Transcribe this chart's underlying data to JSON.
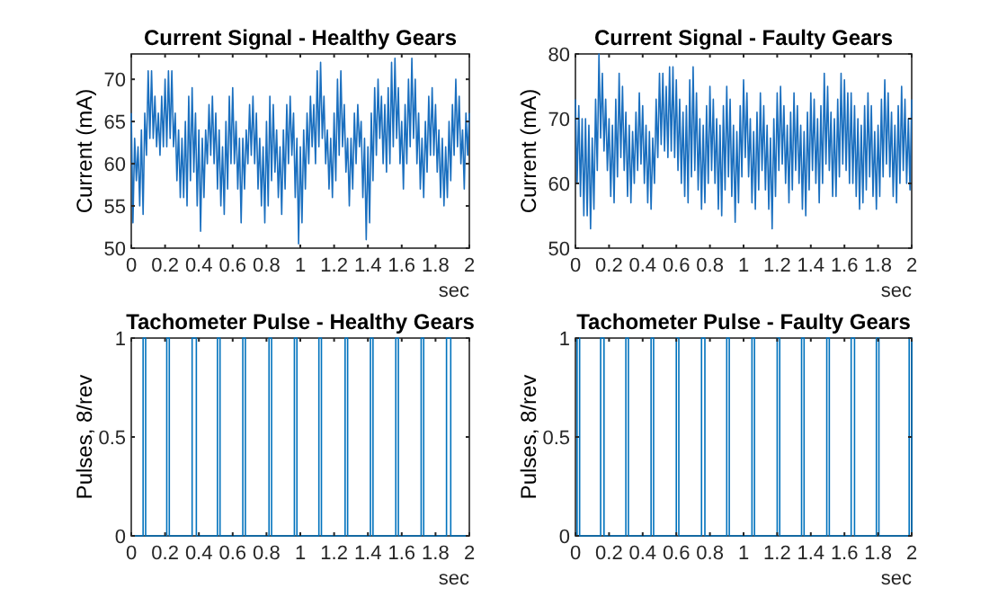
{
  "chart_data": [
    {
      "type": "line",
      "title": "Current Signal - Healthy Gears",
      "xlabel": "sec",
      "ylabel": "Current (mA)",
      "xlim": [
        0,
        2
      ],
      "ylim": [
        50,
        73
      ],
      "xticks": [
        0,
        0.2,
        0.4,
        0.6,
        0.8,
        1,
        1.2,
        1.4,
        1.6,
        1.8,
        2
      ],
      "yticks": [
        50,
        55,
        60,
        65,
        70
      ],
      "grid": false,
      "line_style": "solid",
      "x": [
        0,
        0.01,
        0.02,
        0.03,
        0.04,
        0.05,
        0.06,
        0.07,
        0.08,
        0.09,
        0.1,
        0.11,
        0.12,
        0.13,
        0.14,
        0.15,
        0.16,
        0.17,
        0.18,
        0.19,
        0.2,
        0.21,
        0.22,
        0.23,
        0.24,
        0.25,
        0.26,
        0.27,
        0.28,
        0.29,
        0.3,
        0.31,
        0.32,
        0.33,
        0.34,
        0.35,
        0.36,
        0.37,
        0.38,
        0.39,
        0.4,
        0.41,
        0.42,
        0.43,
        0.44,
        0.45,
        0.46,
        0.47,
        0.48,
        0.49,
        0.5,
        0.51,
        0.52,
        0.53,
        0.54,
        0.55,
        0.56,
        0.57,
        0.58,
        0.59,
        0.6,
        0.61,
        0.62,
        0.63,
        0.64,
        0.65,
        0.66,
        0.67,
        0.68,
        0.69,
        0.7,
        0.71,
        0.72,
        0.73,
        0.74,
        0.75,
        0.76,
        0.77,
        0.78,
        0.79,
        0.8,
        0.81,
        0.82,
        0.83,
        0.84,
        0.85,
        0.86,
        0.87,
        0.88,
        0.89,
        0.9,
        0.91,
        0.92,
        0.93,
        0.94,
        0.95,
        0.96,
        0.97,
        0.98,
        0.99,
        1,
        1.01,
        1.02,
        1.03,
        1.04,
        1.05,
        1.06,
        1.07,
        1.08,
        1.09,
        1.1,
        1.11,
        1.12,
        1.13,
        1.14,
        1.15,
        1.16,
        1.17,
        1.18,
        1.19,
        1.2,
        1.21,
        1.22,
        1.23,
        1.24,
        1.25,
        1.26,
        1.27,
        1.28,
        1.29,
        1.3,
        1.31,
        1.32,
        1.33,
        1.34,
        1.35,
        1.36,
        1.37,
        1.38,
        1.39,
        1.4,
        1.41,
        1.42,
        1.43,
        1.44,
        1.45,
        1.46,
        1.47,
        1.48,
        1.49,
        1.5,
        1.51,
        1.52,
        1.53,
        1.54,
        1.55,
        1.56,
        1.57,
        1.58,
        1.59,
        1.6,
        1.61,
        1.62,
        1.63,
        1.64,
        1.65,
        1.66,
        1.67,
        1.68,
        1.69,
        1.7,
        1.71,
        1.72,
        1.73,
        1.74,
        1.75,
        1.76,
        1.77,
        1.78,
        1.79,
        1.8,
        1.81,
        1.82,
        1.83,
        1.84,
        1.85,
        1.86,
        1.87,
        1.88,
        1.89,
        1.9,
        1.91,
        1.92,
        1.93,
        1.94,
        1.95,
        1.96,
        1.97,
        1.98,
        1.99,
        2
      ],
      "series": [
        {
          "color": "#1a6fbf",
          "values": [
            66,
            53,
            63,
            58,
            62,
            55,
            64,
            54,
            66,
            61,
            71,
            63,
            71,
            63,
            68,
            62,
            66,
            61,
            68,
            62,
            70,
            62,
            71,
            63,
            71,
            62,
            66,
            58,
            64,
            56,
            63,
            56,
            65,
            55,
            68,
            58,
            69,
            59,
            66,
            55,
            64,
            52,
            63,
            56,
            64,
            60,
            67,
            61,
            68,
            60,
            66,
            57,
            64,
            55,
            62,
            54,
            65,
            57,
            68,
            60,
            69,
            60,
            65,
            57,
            63,
            53,
            63,
            57,
            64,
            60,
            67,
            61,
            68,
            60,
            66,
            57,
            63,
            55,
            62,
            53,
            65,
            55,
            68,
            58,
            67,
            59,
            64,
            56,
            62,
            54,
            64,
            57,
            67,
            60,
            68,
            61,
            66,
            56,
            63,
            50.5,
            62,
            53,
            64,
            57,
            66,
            60,
            68,
            62,
            67,
            60,
            71,
            62,
            72,
            63,
            68,
            60,
            64,
            57,
            63,
            56,
            66,
            58,
            70,
            61,
            71,
            62,
            67,
            59,
            63,
            55,
            63,
            57,
            66,
            60,
            67,
            62,
            65,
            56,
            63,
            51,
            62,
            53,
            66,
            58,
            69,
            61,
            70,
            63,
            68,
            60,
            67,
            59,
            69,
            60,
            72,
            62,
            72.5,
            63,
            69,
            60,
            65,
            57,
            67,
            60,
            70,
            62,
            72.5,
            63,
            70,
            60,
            66,
            57,
            63,
            56,
            65,
            59,
            68,
            61,
            69,
            61,
            67,
            59,
            64,
            56,
            63,
            55,
            62,
            56,
            65,
            58,
            67,
            61,
            70,
            62,
            68,
            60,
            64,
            57,
            66,
            61,
            66
          ]
        }
      ]
    },
    {
      "type": "line",
      "title": "Current Signal - Faulty Gears",
      "xlabel": "sec",
      "ylabel": "Current (mA)",
      "xlim": [
        0,
        2
      ],
      "ylim": [
        50,
        80
      ],
      "xticks": [
        0,
        0.2,
        0.4,
        0.6,
        0.8,
        1,
        1.2,
        1.4,
        1.6,
        1.8,
        2
      ],
      "yticks": [
        50,
        60,
        70,
        80
      ],
      "grid": false,
      "line_style": "solid",
      "x": [
        0,
        0.01,
        0.02,
        0.03,
        0.04,
        0.05,
        0.06,
        0.07,
        0.08,
        0.09,
        0.1,
        0.11,
        0.12,
        0.13,
        0.14,
        0.15,
        0.16,
        0.17,
        0.18,
        0.19,
        0.2,
        0.21,
        0.22,
        0.23,
        0.24,
        0.25,
        0.26,
        0.27,
        0.28,
        0.29,
        0.3,
        0.31,
        0.32,
        0.33,
        0.34,
        0.35,
        0.36,
        0.37,
        0.38,
        0.39,
        0.4,
        0.41,
        0.42,
        0.43,
        0.44,
        0.45,
        0.46,
        0.47,
        0.48,
        0.49,
        0.5,
        0.51,
        0.52,
        0.53,
        0.54,
        0.55,
        0.56,
        0.57,
        0.58,
        0.59,
        0.6,
        0.61,
        0.62,
        0.63,
        0.64,
        0.65,
        0.66,
        0.67,
        0.68,
        0.69,
        0.7,
        0.71,
        0.72,
        0.73,
        0.74,
        0.75,
        0.76,
        0.77,
        0.78,
        0.79,
        0.8,
        0.81,
        0.82,
        0.83,
        0.84,
        0.85,
        0.86,
        0.87,
        0.88,
        0.89,
        0.9,
        0.91,
        0.92,
        0.93,
        0.94,
        0.95,
        0.96,
        0.97,
        0.98,
        0.99,
        1,
        1.01,
        1.02,
        1.03,
        1.04,
        1.05,
        1.06,
        1.07,
        1.08,
        1.09,
        1.1,
        1.11,
        1.12,
        1.13,
        1.14,
        1.15,
        1.16,
        1.17,
        1.18,
        1.19,
        1.2,
        1.21,
        1.22,
        1.23,
        1.24,
        1.25,
        1.26,
        1.27,
        1.28,
        1.29,
        1.3,
        1.31,
        1.32,
        1.33,
        1.34,
        1.35,
        1.36,
        1.37,
        1.38,
        1.39,
        1.4,
        1.41,
        1.42,
        1.43,
        1.44,
        1.45,
        1.46,
        1.47,
        1.48,
        1.49,
        1.5,
        1.51,
        1.52,
        1.53,
        1.54,
        1.55,
        1.56,
        1.57,
        1.58,
        1.59,
        1.6,
        1.61,
        1.62,
        1.63,
        1.64,
        1.65,
        1.66,
        1.67,
        1.68,
        1.69,
        1.7,
        1.71,
        1.72,
        1.73,
        1.74,
        1.75,
        1.76,
        1.77,
        1.78,
        1.79,
        1.8,
        1.81,
        1.82,
        1.83,
        1.84,
        1.85,
        1.86,
        1.87,
        1.88,
        1.89,
        1.9,
        1.91,
        1.92,
        1.93,
        1.94,
        1.95,
        1.96,
        1.97,
        1.98,
        1.99,
        2
      ],
      "series": [
        {
          "color": "#1a6fbf",
          "values": [
            73,
            60,
            72,
            58,
            70,
            55,
            70,
            55,
            69,
            53,
            67,
            56,
            73,
            62,
            80,
            67,
            77,
            65,
            73,
            62,
            70,
            58,
            69,
            57,
            73,
            61,
            77,
            64,
            75,
            62,
            71,
            58,
            69,
            57,
            68,
            60,
            71,
            62,
            74,
            63,
            72,
            60,
            69,
            57,
            68,
            56,
            67,
            60,
            73,
            64,
            77,
            66,
            77,
            65,
            75,
            64,
            78,
            65,
            78,
            64,
            76,
            62,
            73,
            60,
            71,
            58,
            72,
            57,
            76,
            61,
            78,
            62,
            74,
            59,
            70,
            56,
            69,
            57,
            72,
            60,
            75,
            62,
            73,
            60,
            70,
            56,
            69,
            55,
            72,
            59,
            75,
            61,
            73,
            58,
            69,
            54,
            68,
            57,
            72,
            61,
            76,
            64,
            74,
            61,
            70,
            57,
            68,
            56,
            71,
            59,
            74,
            62,
            72,
            59,
            69,
            56,
            67,
            53,
            70,
            58,
            74,
            62,
            75,
            63,
            72,
            60,
            69,
            57,
            71,
            59,
            74,
            62,
            72,
            60,
            69,
            56,
            68,
            55,
            71,
            59,
            74,
            62,
            73,
            60,
            70,
            57,
            72,
            60,
            77,
            63,
            75,
            62,
            71,
            58,
            70,
            58,
            73,
            61,
            77,
            63,
            76,
            62,
            74,
            60,
            74,
            60,
            72,
            58,
            70,
            56,
            69,
            57,
            72,
            59,
            74,
            61,
            72,
            58,
            68,
            56,
            69,
            58,
            73,
            61,
            76,
            63,
            74,
            61,
            71,
            58,
            69,
            57,
            72,
            60,
            75,
            62,
            73,
            60,
            70,
            59,
            73
          ]
        }
      ]
    },
    {
      "type": "line",
      "title": "Tachometer Pulse - Healthy Gears",
      "xlabel": "sec",
      "ylabel": "Pulses, 8/rev",
      "xlim": [
        0,
        2
      ],
      "ylim": [
        0,
        1
      ],
      "xticks": [
        0,
        0.2,
        0.4,
        0.6,
        0.8,
        1,
        1.2,
        1.4,
        1.6,
        1.8,
        2
      ],
      "yticks": [
        0,
        0.5,
        1
      ],
      "grid": false,
      "line_style": "solid",
      "x": [
        0,
        0.07,
        0.07,
        0.085,
        0.085,
        0.21,
        0.21,
        0.225,
        0.225,
        0.36,
        0.36,
        0.385,
        0.385,
        0.51,
        0.51,
        0.525,
        0.525,
        0.66,
        0.66,
        0.675,
        0.675,
        0.815,
        0.815,
        0.83,
        0.83,
        0.965,
        0.965,
        0.98,
        0.98,
        1.11,
        1.11,
        1.125,
        1.125,
        1.265,
        1.265,
        1.28,
        1.28,
        1.415,
        1.415,
        1.43,
        1.43,
        1.565,
        1.565,
        1.58,
        1.58,
        1.715,
        1.715,
        1.73,
        1.73,
        1.865,
        1.865,
        1.89,
        1.89,
        2
      ],
      "series": [
        {
          "color": "#0072bd",
          "values": [
            0,
            0,
            1,
            1,
            0,
            0,
            1,
            1,
            0,
            0,
            1,
            1,
            0,
            0,
            1,
            1,
            0,
            0,
            1,
            1,
            0,
            0,
            1,
            1,
            0,
            0,
            1,
            1,
            0,
            0,
            1,
            1,
            0,
            0,
            1,
            1,
            0,
            0,
            1,
            1,
            0,
            0,
            1,
            1,
            0,
            0,
            1,
            1,
            0,
            0,
            1,
            1,
            0,
            0
          ]
        }
      ]
    },
    {
      "type": "line",
      "title": "Tachometer Pulse - Faulty Gears",
      "xlabel": "sec",
      "ylabel": "Pulses, 8/rev",
      "xlim": [
        0,
        2
      ],
      "ylim": [
        0,
        1
      ],
      "xticks": [
        0,
        0.2,
        0.4,
        0.6,
        0.8,
        1,
        1.2,
        1.4,
        1.6,
        1.8,
        2
      ],
      "yticks": [
        0,
        0.5,
        1
      ],
      "grid": false,
      "line_style": "solid",
      "x": [
        0,
        0.01,
        0.01,
        0.025,
        0.025,
        0.15,
        0.15,
        0.17,
        0.17,
        0.3,
        0.3,
        0.315,
        0.315,
        0.45,
        0.45,
        0.465,
        0.465,
        0.6,
        0.6,
        0.615,
        0.615,
        0.75,
        0.75,
        0.77,
        0.77,
        0.9,
        0.9,
        0.915,
        0.915,
        1.05,
        1.05,
        1.065,
        1.065,
        1.2,
        1.2,
        1.215,
        1.215,
        1.345,
        1.345,
        1.36,
        1.36,
        1.495,
        1.495,
        1.51,
        1.51,
        1.64,
        1.64,
        1.66,
        1.66,
        1.79,
        1.79,
        1.805,
        1.805,
        1.985,
        1.985,
        2,
        2
      ],
      "series": [
        {
          "color": "#0072bd",
          "values": [
            0,
            0,
            1,
            1,
            0,
            0,
            1,
            1,
            0,
            0,
            1,
            1,
            0,
            0,
            1,
            1,
            0,
            0,
            1,
            1,
            0,
            0,
            1,
            1,
            0,
            0,
            1,
            1,
            0,
            0,
            1,
            1,
            0,
            0,
            1,
            1,
            0,
            0,
            1,
            1,
            0,
            0,
            1,
            1,
            0,
            0,
            1,
            1,
            0,
            0,
            1,
            1,
            0,
            0,
            1,
            1,
            0
          ]
        }
      ]
    }
  ]
}
